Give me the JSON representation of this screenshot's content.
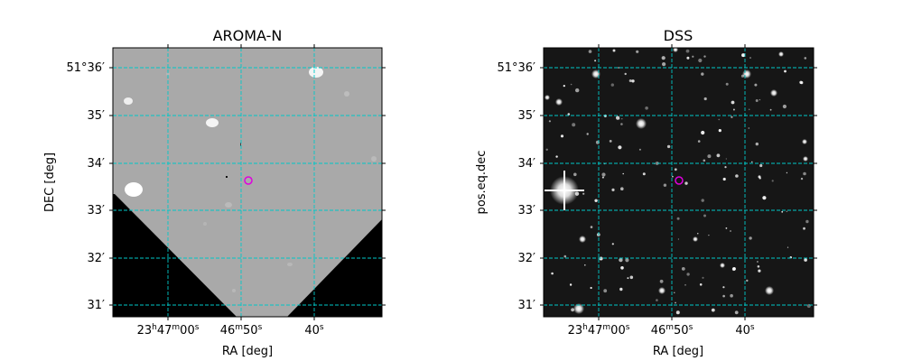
{
  "colors": {
    "grid": "#00c8c8",
    "marker": "#e000e0",
    "frame": "#000000",
    "sky_grey": "#a9a9a9",
    "coverage_black": "#000000",
    "dss_background": "#161616",
    "star": "#ffffff"
  },
  "chart_data": [
    {
      "type": "image",
      "title": "AROMA-N",
      "xlabel": "RA [deg]",
      "ylabel": "DEC [deg]",
      "x_ticks": [
        {
          "value": "23h47m00s",
          "h": "23",
          "m": "47",
          "s": "00"
        },
        {
          "value": "46m50s",
          "m": "46",
          "s": "50"
        },
        {
          "value": "40s",
          "s": "40"
        }
      ],
      "y_ticks": [
        "51°36′",
        "35′",
        "34′",
        "33′",
        "32′",
        "31′"
      ],
      "grid": true,
      "marker": "circle"
    },
    {
      "type": "image",
      "title": "DSS",
      "xlabel": "RA [deg]",
      "ylabel": "pos.eq.dec",
      "x_ticks": [
        {
          "value": "23h47m00s",
          "h": "23",
          "m": "47",
          "s": "00"
        },
        {
          "value": "46m50s",
          "m": "46",
          "s": "50"
        },
        {
          "value": "40s",
          "s": "40"
        }
      ],
      "y_ticks": [
        "51°36′",
        "35′",
        "34′",
        "33′",
        "32′",
        "31′"
      ],
      "grid": true,
      "marker": "circle"
    }
  ]
}
